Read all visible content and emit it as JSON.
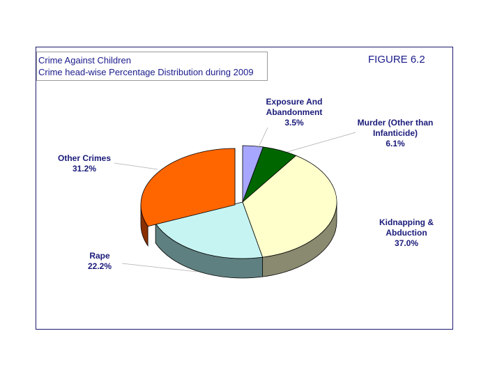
{
  "figure_label": "FIGURE 6.2",
  "title_lines": [
    "Crime Against Children",
    "Crime head-wise Percentage Distribution during 2009"
  ],
  "chart_data": {
    "type": "pie",
    "title": "Crime Against Children",
    "subtitle": "Crime head-wise Percentage Distribution during 2009",
    "slices": [
      {
        "name": "Exposure And Abandonment",
        "value": 3.5,
        "label_lines": [
          "Exposure And",
          "Abandonment",
          "3.5%"
        ],
        "color": "#a7a7ff",
        "side": "#6e6ea8"
      },
      {
        "name": "Murder (Other than Infanticide)",
        "value": 6.1,
        "label_lines": [
          "Murder (Other than",
          "Infanticide)",
          "6.1%"
        ],
        "color": "#006600",
        "side": "#003a00"
      },
      {
        "name": "Kidnapping & Abduction",
        "value": 37.0,
        "label_lines": [
          "Kidnapping &",
          "Abduction",
          "37.0%"
        ],
        "color": "#ffffcc",
        "side": "#8a8a70"
      },
      {
        "name": "Rape",
        "value": 22.2,
        "label_lines": [
          "Rape",
          "22.2%"
        ],
        "color": "#c6f4f2",
        "side": "#5f8080"
      },
      {
        "name": "Other Crimes",
        "value": 31.2,
        "label_lines": [
          "Other Crimes",
          "31.2%"
        ],
        "color": "#ff6600",
        "side": "#8a3000"
      }
    ],
    "legend": "none"
  }
}
